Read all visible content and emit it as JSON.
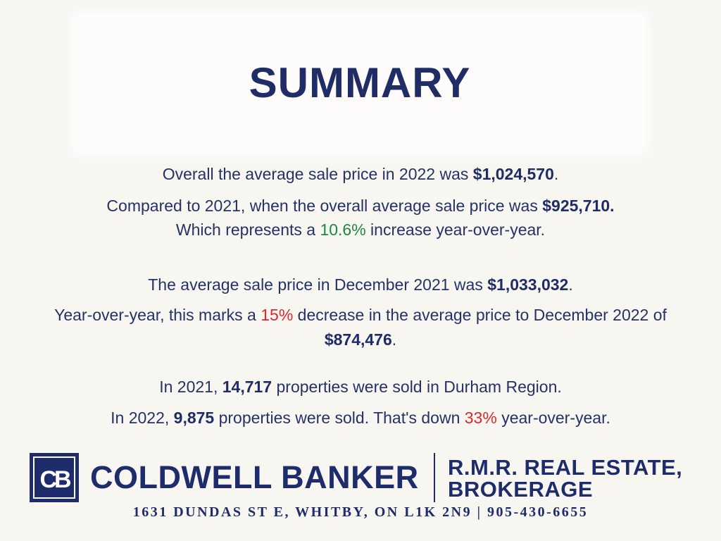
{
  "title": "SUMMARY",
  "paragraphs": [
    [
      "Overall the average sale price in 2022 was ",
      "$1,024,570",
      "."
    ],
    [
      "Compared to 2021, when the overall average sale price was ",
      "$925,710."
    ],
    [
      "Which represents a ",
      "10.6%",
      " increase year-over-year."
    ],
    [
      "The average sale price in December 2021 was ",
      "$1,033,032",
      "."
    ],
    [
      "Year-over-year, this marks a ",
      "15%",
      " decrease in the average price to December 2022 of ",
      "$874,476",
      "."
    ],
    [
      "In 2021, ",
      "14,717",
      " properties were sold in Durham Region."
    ],
    [
      "In 2022, ",
      "9,875",
      " properties were sold. That's down ",
      "33%",
      " year-over-year."
    ]
  ],
  "footer": {
    "logo_mark": "CB",
    "brand": "COLDWELL BANKER",
    "brokerage": [
      "R.M.R. REAL ESTATE,",
      "BROKERAGE"
    ],
    "address": "1631 DUNDAS ST E, WHITBY, ON L1K 2N9 | 905-430-6655"
  }
}
